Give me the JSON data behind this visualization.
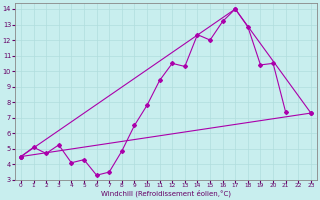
{
  "bg_color": "#c8eeee",
  "grid_color": "#b0dddd",
  "line_color": "#aa00aa",
  "xlabel": "Windchill (Refroidissement éolien,°C)",
  "xlim": [
    -0.5,
    23.5
  ],
  "ylim": [
    3,
    14.4
  ],
  "xticks": [
    0,
    1,
    2,
    3,
    4,
    5,
    6,
    7,
    8,
    9,
    10,
    11,
    12,
    13,
    14,
    15,
    16,
    17,
    18,
    19,
    20,
    21,
    22,
    23
  ],
  "yticks": [
    3,
    4,
    5,
    6,
    7,
    8,
    9,
    10,
    11,
    12,
    13,
    14
  ],
  "line_wiggly": {
    "x": [
      0,
      1,
      2,
      3,
      4,
      5,
      6,
      7,
      8,
      9,
      10,
      11,
      12,
      13,
      14,
      15,
      16,
      17,
      18,
      19,
      20,
      21
    ],
    "y": [
      4.5,
      5.1,
      4.7,
      5.25,
      4.1,
      4.3,
      3.3,
      3.5,
      4.85,
      6.5,
      7.8,
      9.4,
      10.5,
      10.3,
      12.35,
      12.0,
      13.2,
      14.0,
      12.85,
      10.4,
      10.5,
      7.35
    ]
  },
  "line_straight": {
    "x": [
      0,
      23
    ],
    "y": [
      4.5,
      7.3
    ]
  },
  "line_triangle": {
    "x": [
      0,
      17,
      23
    ],
    "y": [
      4.5,
      14.0,
      7.3
    ]
  }
}
